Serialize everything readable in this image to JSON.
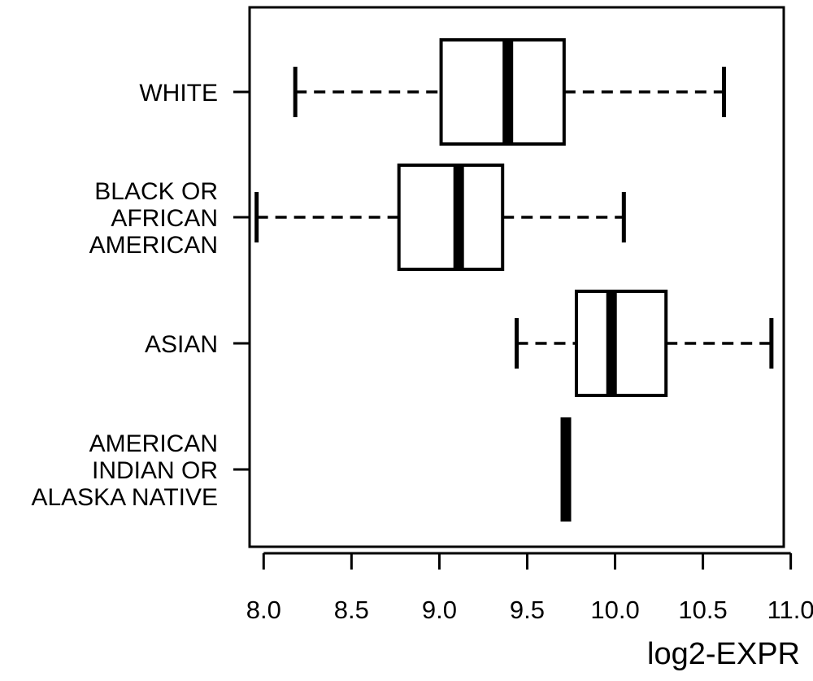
{
  "chart_data": {
    "type": "boxplot",
    "orientation": "horizontal",
    "title": "",
    "xlabel": "log2-EXPR",
    "ylabel": "",
    "xlim": [
      7.92,
      10.96
    ],
    "x_ticks": [
      8.0,
      8.5,
      9.0,
      9.5,
      10.0,
      10.5,
      11.0
    ],
    "x_tick_labels": [
      "8.0",
      "8.5",
      "9.0",
      "9.5",
      "10.0",
      "10.5",
      "11.0"
    ],
    "grid": false,
    "legend": "none",
    "categories": [
      {
        "label": "WHITE",
        "label_lines": [
          "WHITE"
        ]
      },
      {
        "label": "BLACK OR AFRICAN AMERICAN",
        "label_lines": [
          "BLACK OR",
          "AFRICAN",
          "AMERICAN"
        ]
      },
      {
        "label": "ASIAN",
        "label_lines": [
          "ASIAN"
        ]
      },
      {
        "label": "AMERICAN INDIAN OR ALASKA NATIVE",
        "label_lines": [
          "AMERICAN",
          "INDIAN OR",
          "ALASKA NATIVE"
        ]
      }
    ],
    "boxes": [
      {
        "category": "WHITE",
        "whisker_low": 8.18,
        "q1": 9.01,
        "median": 9.39,
        "q3": 9.71,
        "whisker_high": 10.62
      },
      {
        "category": "BLACK OR AFRICAN AMERICAN",
        "whisker_low": 7.96,
        "q1": 8.77,
        "median": 9.11,
        "q3": 9.36,
        "whisker_high": 10.05
      },
      {
        "category": "ASIAN",
        "whisker_low": 9.44,
        "q1": 9.78,
        "median": 9.98,
        "q3": 10.29,
        "whisker_high": 10.89
      },
      {
        "category": "AMERICAN INDIAN OR ALASKA NATIVE",
        "whisker_low": 9.72,
        "q1": 9.72,
        "median": 9.72,
        "q3": 9.72,
        "whisker_high": 9.72
      }
    ],
    "colors": {
      "stroke": "#000000",
      "box_fill": "#ffffff",
      "background": "#ffffff"
    }
  }
}
